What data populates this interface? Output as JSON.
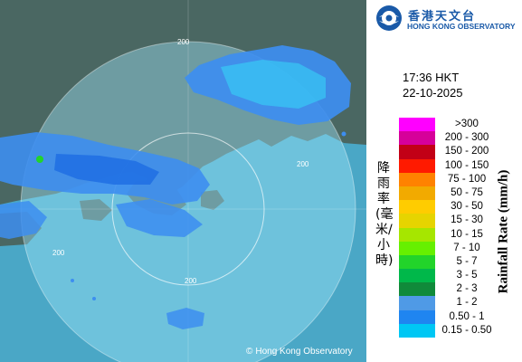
{
  "map": {
    "range_rings": [
      "200",
      "200",
      "200",
      "200"
    ],
    "copyright": "Hong Kong Observatory",
    "copyright_symbol": "©",
    "colors": {
      "land": "#4a6762",
      "sea": "#4aa7c6",
      "radar_disc": "#9fe6fa",
      "echo_light": "#38c9f5",
      "echo_blue": "#3d8ef0",
      "echo_mid": "#1f6ee3"
    }
  },
  "header": {
    "logo_zh": "香港天文台",
    "logo_en": "HONG KONG OBSERVATORY"
  },
  "observation": {
    "time": "17:36 HKT",
    "date": "22-10-2025"
  },
  "legend": {
    "title_zh": "降雨率(毫米/小時)",
    "title_en": "Rainfall Rate (mm/h)",
    "ranges": [
      {
        "label": ">300",
        "color": "#ff00ff"
      },
      {
        "label": "200 - 300",
        "color": "#d6009a"
      },
      {
        "label": "150 - 200",
        "color": "#c20016"
      },
      {
        "label": "100 - 150",
        "color": "#ff1a00"
      },
      {
        "label": "75 - 100",
        "color": "#ff8200"
      },
      {
        "label": "50 - 75",
        "color": "#f2aa00"
      },
      {
        "label": "30 - 50",
        "color": "#ffcc00"
      },
      {
        "label": "15 - 30",
        "color": "#e6d400"
      },
      {
        "label": "10 - 15",
        "color": "#a6e600"
      },
      {
        "label": "7 - 10",
        "color": "#66f000"
      },
      {
        "label": "5 - 7",
        "color": "#22d42a"
      },
      {
        "label": "3 - 5",
        "color": "#00b84a"
      },
      {
        "label": "2 - 3",
        "color": "#108a3a"
      },
      {
        "label": "1 - 2",
        "color": "#4f9ae6"
      },
      {
        "label": "0.50 - 1",
        "color": "#1f85f0"
      },
      {
        "label": "0.15 - 0.50",
        "color": "#00c7f4"
      }
    ]
  }
}
